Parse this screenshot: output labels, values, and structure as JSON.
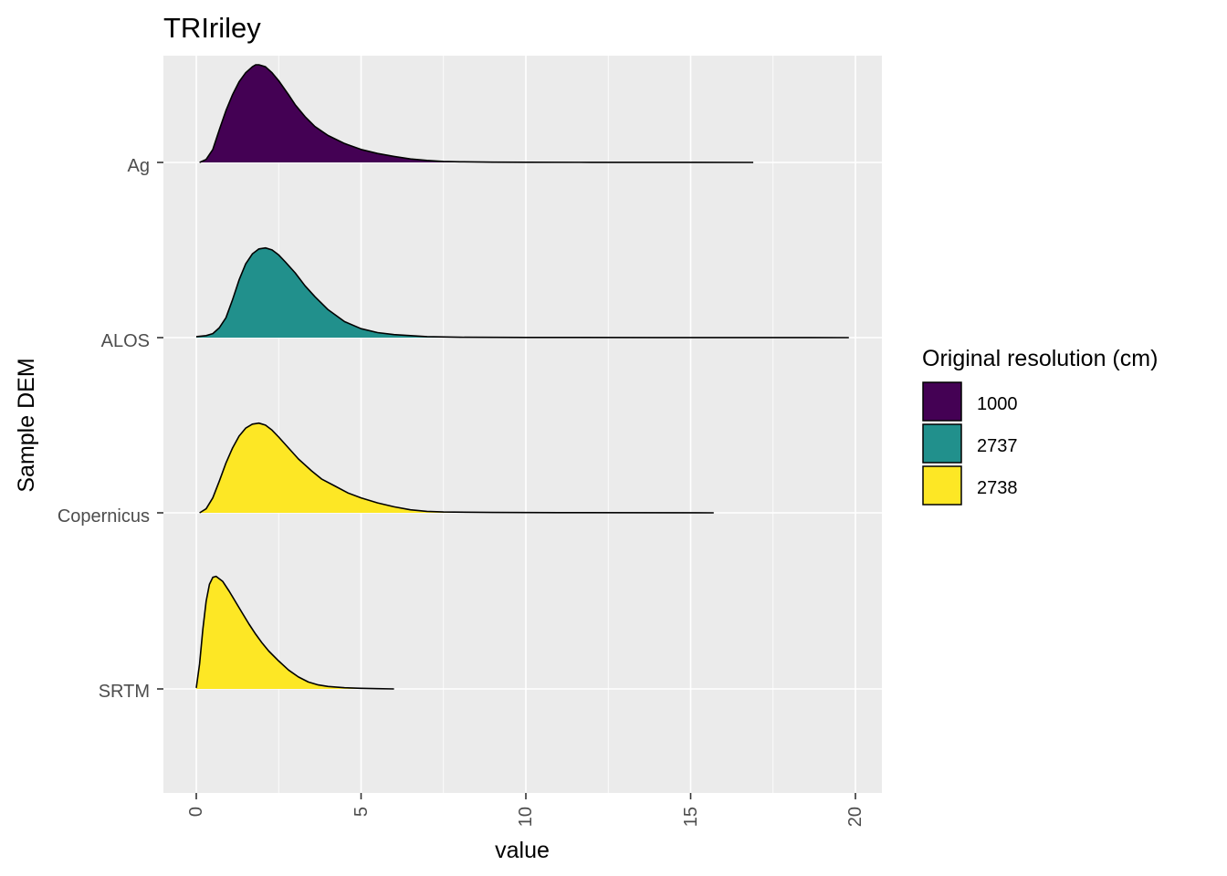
{
  "chart_data": {
    "type": "ridgeline",
    "title": "TRIriley",
    "xlabel": "value",
    "ylabel": "Sample DEM",
    "xlim": [
      -1,
      20.8
    ],
    "x_ticks": [
      0,
      5,
      10,
      15,
      20
    ],
    "x_tick_labels": [
      "0",
      "5",
      "10",
      "15",
      "20"
    ],
    "categories": [
      "Ag",
      "ALOS",
      "Copernicus",
      "SRTM"
    ],
    "grid": true,
    "colors": {
      "panel_background": "#ebebeb",
      "grid_line": "#ffffff",
      "outline": "#000000",
      "tick": "#333333",
      "tick_label": "#4d4d4d"
    },
    "legend": {
      "title": "Original resolution (cm)",
      "position": "right",
      "entries": [
        {
          "label": "1000",
          "color": "#440154"
        },
        {
          "label": "2737",
          "color": "#21908C"
        },
        {
          "label": "2738",
          "color": "#FDE725"
        }
      ]
    },
    "series": [
      {
        "category": "Ag",
        "resolution": "1000",
        "color": "#440154",
        "x_range": [
          0.1,
          16.9
        ],
        "points": [
          [
            0.1,
            0
          ],
          [
            0.3,
            0.03
          ],
          [
            0.5,
            0.13
          ],
          [
            0.7,
            0.33
          ],
          [
            0.9,
            0.52
          ],
          [
            1.1,
            0.68
          ],
          [
            1.3,
            0.81
          ],
          [
            1.5,
            0.9
          ],
          [
            1.7,
            0.96
          ],
          [
            1.8,
            0.98
          ],
          [
            1.9,
            0.98
          ],
          [
            2.1,
            0.96
          ],
          [
            2.3,
            0.9
          ],
          [
            2.5,
            0.82
          ],
          [
            2.8,
            0.68
          ],
          [
            3.0,
            0.58
          ],
          [
            3.3,
            0.46
          ],
          [
            3.6,
            0.36
          ],
          [
            4.0,
            0.27
          ],
          [
            4.5,
            0.19
          ],
          [
            5.0,
            0.13
          ],
          [
            5.5,
            0.09
          ],
          [
            6.0,
            0.06
          ],
          [
            6.5,
            0.035
          ],
          [
            7.0,
            0.02
          ],
          [
            7.5,
            0.01
          ],
          [
            8.0,
            0.006
          ],
          [
            9.0,
            0.003
          ],
          [
            10.0,
            0.002
          ],
          [
            12.0,
            0.001
          ],
          [
            16.9,
            0
          ]
        ]
      },
      {
        "category": "ALOS",
        "resolution": "2737",
        "color": "#21908C",
        "x_range": [
          0.0,
          19.8
        ],
        "points": [
          [
            0.0,
            0.01
          ],
          [
            0.3,
            0.02
          ],
          [
            0.5,
            0.04
          ],
          [
            0.7,
            0.1
          ],
          [
            0.9,
            0.2
          ],
          [
            1.1,
            0.38
          ],
          [
            1.3,
            0.58
          ],
          [
            1.5,
            0.74
          ],
          [
            1.7,
            0.84
          ],
          [
            1.9,
            0.89
          ],
          [
            2.1,
            0.9
          ],
          [
            2.3,
            0.88
          ],
          [
            2.5,
            0.83
          ],
          [
            2.7,
            0.76
          ],
          [
            3.0,
            0.65
          ],
          [
            3.3,
            0.52
          ],
          [
            3.6,
            0.41
          ],
          [
            4.0,
            0.28
          ],
          [
            4.5,
            0.16
          ],
          [
            5.0,
            0.09
          ],
          [
            5.5,
            0.05
          ],
          [
            6.0,
            0.03
          ],
          [
            7.0,
            0.01
          ],
          [
            8.0,
            0.004
          ],
          [
            10.0,
            0.002
          ],
          [
            14.0,
            0.001
          ],
          [
            19.8,
            0
          ]
        ]
      },
      {
        "category": "Copernicus",
        "resolution": "2738",
        "color": "#FDE725",
        "x_range": [
          0.1,
          15.7
        ],
        "points": [
          [
            0.1,
            0
          ],
          [
            0.3,
            0.04
          ],
          [
            0.5,
            0.15
          ],
          [
            0.7,
            0.32
          ],
          [
            0.9,
            0.5
          ],
          [
            1.1,
            0.65
          ],
          [
            1.3,
            0.77
          ],
          [
            1.5,
            0.85
          ],
          [
            1.7,
            0.89
          ],
          [
            1.9,
            0.9
          ],
          [
            2.1,
            0.88
          ],
          [
            2.3,
            0.83
          ],
          [
            2.5,
            0.76
          ],
          [
            2.8,
            0.65
          ],
          [
            3.1,
            0.54
          ],
          [
            3.5,
            0.42
          ],
          [
            3.8,
            0.34
          ],
          [
            4.2,
            0.27
          ],
          [
            4.6,
            0.2
          ],
          [
            5.0,
            0.15
          ],
          [
            5.5,
            0.1
          ],
          [
            6.0,
            0.06
          ],
          [
            6.5,
            0.03
          ],
          [
            7.0,
            0.015
          ],
          [
            7.5,
            0.008
          ],
          [
            9.0,
            0.004
          ],
          [
            11.0,
            0.002
          ],
          [
            15.7,
            0
          ]
        ]
      },
      {
        "category": "SRTM",
        "resolution": "2738",
        "color": "#FDE725",
        "x_range": [
          0.0,
          6.0
        ],
        "points": [
          [
            0.0,
            0.01
          ],
          [
            0.1,
            0.25
          ],
          [
            0.2,
            0.6
          ],
          [
            0.3,
            0.88
          ],
          [
            0.4,
            1.05
          ],
          [
            0.5,
            1.12
          ],
          [
            0.6,
            1.13
          ],
          [
            0.8,
            1.08
          ],
          [
            1.0,
            0.98
          ],
          [
            1.2,
            0.87
          ],
          [
            1.4,
            0.76
          ],
          [
            1.6,
            0.65
          ],
          [
            1.8,
            0.55
          ],
          [
            2.0,
            0.46
          ],
          [
            2.2,
            0.38
          ],
          [
            2.5,
            0.28
          ],
          [
            2.8,
            0.19
          ],
          [
            3.1,
            0.12
          ],
          [
            3.4,
            0.07
          ],
          [
            3.7,
            0.04
          ],
          [
            4.0,
            0.025
          ],
          [
            4.5,
            0.012
          ],
          [
            5.0,
            0.006
          ],
          [
            5.5,
            0.003
          ],
          [
            6.0,
            0
          ]
        ]
      }
    ]
  }
}
